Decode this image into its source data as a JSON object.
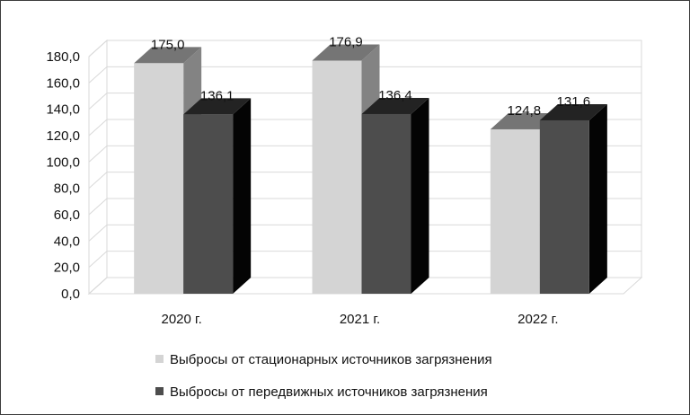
{
  "chart_data": {
    "type": "bar",
    "style": "3d-clustered-column",
    "categories": [
      "2020 г.",
      "2021 г.",
      "2022 г."
    ],
    "series": [
      {
        "name": "Выбросы от стационарных источников загрязнения",
        "values": [
          175.0,
          176.9,
          124.8
        ],
        "labels": [
          "175,0",
          "176,9",
          "124,8"
        ],
        "color": "#d4d4d4"
      },
      {
        "name": "Выбросы от передвижных источников загрязнения",
        "values": [
          136.1,
          136.4,
          131.6
        ],
        "labels": [
          "136,1",
          "136,4",
          "131,6"
        ],
        "color": "#4d4d4d"
      }
    ],
    "ylim": [
      0,
      180
    ],
    "yticks": [
      {
        "value": 0,
        "label": "0,0"
      },
      {
        "value": 20,
        "label": "20,0"
      },
      {
        "value": 40,
        "label": "40,0"
      },
      {
        "value": 60,
        "label": "60,0"
      },
      {
        "value": 80,
        "label": "80,0"
      },
      {
        "value": 100,
        "label": "100,0"
      },
      {
        "value": 120,
        "label": "120,0"
      },
      {
        "value": 140,
        "label": "140,0"
      },
      {
        "value": 160,
        "label": "160,0"
      },
      {
        "value": 180,
        "label": "180,0"
      }
    ],
    "grid": true,
    "legend_position": "bottom",
    "title": "",
    "xlabel": "",
    "ylabel": ""
  }
}
